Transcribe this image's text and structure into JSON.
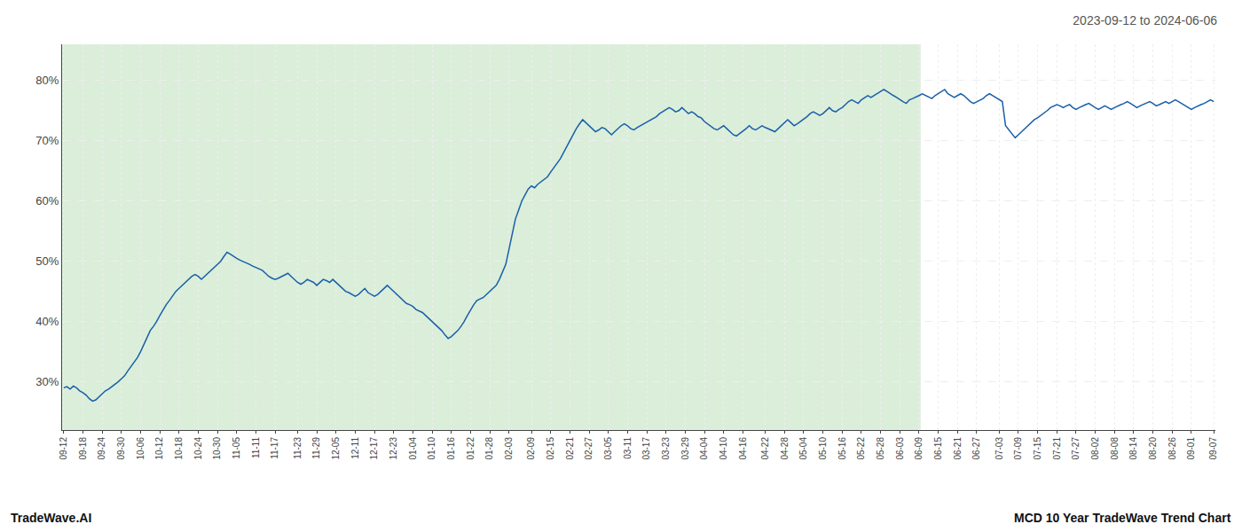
{
  "chart_data": {
    "type": "line",
    "title": "2023-09-12 to 2024-06-06",
    "annotations": [
      "TradeWave.AI",
      "MCD 10 Year TradeWave Trend Chart"
    ],
    "color": "#1a5fa8",
    "grid": true,
    "ylim": [
      22,
      86
    ],
    "yticks": [
      {
        "value": 30,
        "label": "30%"
      },
      {
        "value": 40,
        "label": "40%"
      },
      {
        "value": 50,
        "label": "50%"
      },
      {
        "value": 60,
        "label": "60%"
      },
      {
        "value": 70,
        "label": "70%"
      },
      {
        "value": 80,
        "label": "80%"
      }
    ],
    "shaded_region": {
      "from": "09-12",
      "to": "06-09",
      "color": "#daeeda"
    },
    "categories": [
      "09-12",
      null,
      null,
      null,
      null,
      null,
      "09-18",
      null,
      null,
      null,
      null,
      null,
      "09-24",
      null,
      null,
      null,
      null,
      null,
      "09-30",
      null,
      null,
      null,
      null,
      null,
      "10-06",
      null,
      null,
      null,
      null,
      null,
      "10-12",
      null,
      null,
      null,
      null,
      null,
      "10-18",
      null,
      null,
      null,
      null,
      null,
      "10-24",
      null,
      null,
      null,
      null,
      null,
      "10-30",
      null,
      null,
      null,
      null,
      null,
      "11-05",
      null,
      null,
      null,
      null,
      null,
      "11-11",
      null,
      null,
      null,
      null,
      null,
      "11-17",
      null,
      null,
      null,
      null,
      null,
      null,
      "11-23",
      null,
      null,
      null,
      null,
      null,
      "11-29",
      null,
      null,
      null,
      null,
      null,
      "12-05",
      null,
      null,
      null,
      null,
      null,
      "12-11",
      null,
      null,
      null,
      null,
      null,
      "12-17",
      null,
      null,
      null,
      null,
      null,
      "12-23",
      null,
      null,
      null,
      null,
      null,
      "01-04",
      null,
      null,
      null,
      null,
      null,
      "01-10",
      null,
      null,
      null,
      null,
      null,
      "01-16",
      null,
      null,
      null,
      null,
      null,
      "01-22",
      null,
      null,
      null,
      null,
      null,
      "01-28",
      null,
      null,
      null,
      null,
      null,
      "02-03",
      null,
      null,
      null,
      null,
      null,
      null,
      "02-09",
      null,
      null,
      null,
      null,
      null,
      "02-15",
      null,
      null,
      null,
      null,
      null,
      "02-21",
      null,
      null,
      null,
      null,
      null,
      "02-27",
      null,
      null,
      null,
      null,
      null,
      "03-05",
      null,
      null,
      null,
      null,
      null,
      "03-11",
      null,
      null,
      null,
      null,
      null,
      "03-17",
      null,
      null,
      null,
      null,
      null,
      "03-23",
      null,
      null,
      null,
      null,
      null,
      "03-29",
      null,
      null,
      null,
      null,
      null,
      "04-04",
      null,
      null,
      null,
      null,
      null,
      "04-10",
      null,
      null,
      null,
      null,
      null,
      "04-16",
      null,
      null,
      null,
      null,
      null,
      null,
      "04-22",
      null,
      null,
      null,
      null,
      null,
      "04-28",
      null,
      null,
      null,
      null,
      null,
      "05-04",
      null,
      null,
      null,
      null,
      null,
      "05-10",
      null,
      null,
      null,
      null,
      null,
      "05-16",
      null,
      null,
      null,
      null,
      null,
      "05-22",
      null,
      null,
      null,
      null,
      null,
      "05-28",
      null,
      null,
      null,
      null,
      null,
      "06-03",
      null,
      null,
      null,
      null,
      null,
      "06-09",
      null,
      null,
      null,
      null,
      null,
      "06-15",
      null,
      null,
      null,
      null,
      null,
      "06-21",
      null,
      null,
      null,
      null,
      null,
      "06-27",
      null,
      null,
      null,
      null,
      null,
      null,
      "07-03",
      null,
      null,
      null,
      null,
      null,
      "07-09",
      null,
      null,
      null,
      null,
      null,
      "07-15",
      null,
      null,
      null,
      null,
      null,
      "07-21",
      null,
      null,
      null,
      null,
      null,
      "07-27",
      null,
      null,
      null,
      null,
      null,
      "08-02",
      null,
      null,
      null,
      null,
      null,
      "08-08",
      null,
      null,
      null,
      null,
      null,
      "08-14",
      null,
      null,
      null,
      null,
      null,
      "08-20",
      null,
      null,
      null,
      null,
      null,
      "08-26",
      null,
      null,
      null,
      null,
      null,
      "09-01",
      null,
      null,
      null,
      null,
      null,
      null,
      "09-07"
    ],
    "values": [
      29.0,
      29.2,
      28.8,
      29.3,
      29.0,
      28.5,
      28.2,
      27.8,
      27.2,
      26.8,
      27.0,
      27.5,
      28.0,
      28.5,
      28.8,
      29.2,
      29.5,
      30.0,
      30.5,
      31.0,
      31.8,
      32.5,
      33.2,
      34.0,
      35.0,
      36.2,
      37.5,
      38.5,
      39.2,
      40.0,
      41.0,
      42.0,
      42.8,
      43.5,
      44.2,
      45.0,
      45.5,
      46.0,
      46.5,
      47.0,
      47.5,
      47.8,
      47.5,
      47.0,
      47.5,
      48.0,
      48.5,
      49.0,
      49.5,
      50.0,
      50.8,
      51.5,
      51.2,
      50.8,
      50.5,
      50.2,
      50.0,
      49.8,
      49.5,
      49.2,
      49.0,
      48.8,
      48.5,
      48.0,
      47.5,
      47.2,
      47.0,
      47.2,
      47.5,
      47.8,
      48.0,
      47.5,
      47.0,
      46.5,
      46.2,
      46.5,
      47.0,
      46.8,
      46.5,
      46.0,
      46.5,
      47.0,
      46.8,
      46.5,
      47.0,
      46.5,
      46.0,
      45.5,
      45.0,
      44.8,
      44.5,
      44.2,
      44.5,
      45.0,
      45.5,
      44.8,
      44.5,
      44.2,
      44.5,
      45.0,
      45.5,
      46.0,
      45.5,
      45.0,
      44.5,
      44.0,
      43.5,
      43.0,
      42.8,
      42.5,
      42.0,
      41.8,
      41.5,
      41.0,
      40.5,
      40.0,
      39.5,
      39.0,
      38.5,
      37.8,
      37.2,
      37.5,
      38.0,
      38.5,
      39.2,
      40.0,
      41.0,
      42.0,
      42.8,
      43.5,
      43.8,
      44.0,
      44.5,
      45.0,
      45.5,
      46.0,
      47.0,
      48.2,
      49.5,
      52.0,
      54.5,
      57.0,
      58.5,
      60.0,
      61.0,
      62.0,
      62.5,
      62.2,
      62.8,
      63.2,
      63.5,
      64.0,
      64.8,
      65.5,
      66.2,
      67.0,
      68.0,
      69.0,
      70.0,
      71.2,
      72.0,
      72.8,
      73.5,
      73.0,
      72.5,
      72.0,
      71.5,
      71.8,
      72.2,
      72.0,
      71.5,
      71.0,
      71.5,
      72.0,
      72.5,
      72.8,
      72.5,
      72.0,
      71.8,
      72.2,
      72.5,
      72.8,
      73.2,
      73.5,
      73.8,
      74.0,
      74.5,
      74.8,
      75.2,
      75.5,
      75.2,
      74.8,
      75.0,
      75.5,
      75.0,
      74.5,
      74.8,
      74.5,
      74.0,
      73.8,
      73.2,
      72.8,
      72.5,
      72.0,
      71.8,
      72.2,
      72.5,
      72.0,
      71.5,
      71.0,
      70.8,
      71.2,
      71.5,
      72.0,
      72.5,
      72.0,
      71.8,
      72.2,
      72.5,
      72.2,
      72.0,
      71.8,
      71.5,
      72.0,
      72.5,
      73.0,
      73.5,
      73.0,
      72.5,
      72.8,
      73.2,
      73.5,
      74.0,
      74.5,
      74.8,
      74.5,
      74.2,
      74.5,
      75.0,
      75.5,
      75.0,
      74.8,
      75.2,
      75.5,
      76.0,
      76.5,
      76.8,
      76.5,
      76.2,
      76.8,
      77.2,
      77.5,
      77.2,
      77.5,
      77.8,
      78.2,
      78.5,
      78.2,
      77.8,
      77.5,
      77.2,
      76.8,
      76.5,
      76.2,
      76.8,
      77.0,
      77.2,
      77.5,
      77.8,
      77.5,
      77.2,
      77.0,
      77.5,
      77.8,
      78.2,
      78.5,
      77.8,
      77.5,
      77.2,
      77.5,
      77.8,
      77.5,
      77.0,
      76.5,
      76.2,
      76.5,
      76.8,
      77.0,
      77.5,
      77.8,
      77.5,
      77.2,
      76.8,
      76.5,
      72.5,
      71.8,
      71.2,
      70.5,
      71.0,
      71.5,
      72.0,
      72.5,
      73.0,
      73.5,
      73.8,
      74.2,
      74.5,
      75.0,
      75.5,
      75.8,
      76.0,
      75.8,
      75.5,
      75.8,
      76.0,
      75.5,
      75.2,
      75.5,
      75.8,
      76.0,
      76.2,
      75.8,
      75.5,
      75.2,
      75.5,
      75.8,
      75.5,
      75.2,
      75.5,
      75.8,
      76.0,
      76.2,
      76.5,
      76.2,
      75.8,
      75.5,
      75.8,
      76.0,
      76.2,
      76.5,
      76.2,
      75.8,
      76.0,
      76.2,
      76.5,
      76.2,
      76.5,
      76.8,
      76.5,
      76.2,
      75.8,
      75.5,
      75.2,
      75.5,
      75.8,
      76.0,
      76.2,
      76.5,
      76.8,
      76.5
    ]
  }
}
